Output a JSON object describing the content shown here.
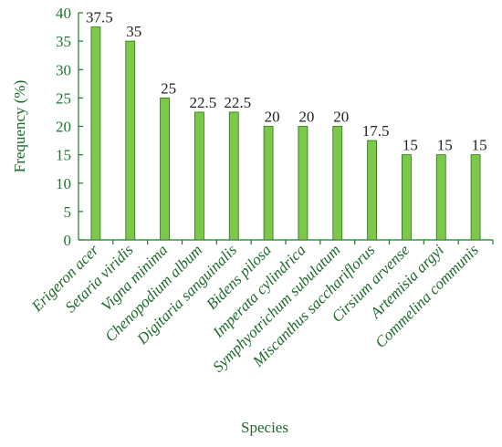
{
  "chart_data": {
    "type": "bar",
    "title": "",
    "xlabel": "Species",
    "ylabel": "Frequency (%)",
    "ylim": [
      0,
      40
    ],
    "yticks": [
      "0",
      "5",
      "10",
      "15",
      "20",
      "25",
      "30",
      "35",
      "40"
    ],
    "categories": [
      "Erigeron acer",
      "Setaria viridis",
      "Vigna minima",
      "Chenopodium album",
      "Digitaria sanguinalis",
      "Bidens pilosa",
      "Imperata cylindrica",
      "Symphyotrichum subulatum",
      "Miscanthus sacchariflorus",
      "Cirsium arvense",
      "Artemisia argyi",
      "Commelina communis"
    ],
    "values": [
      37.5,
      35,
      25,
      22.5,
      22.5,
      20,
      20,
      20,
      17.5,
      15,
      15,
      15
    ],
    "data_labels": [
      "37.5",
      "35",
      "25",
      "22.5",
      "22.5",
      "20",
      "20",
      "20",
      "17.5",
      "15",
      "15",
      "15"
    ],
    "grid": false,
    "legend": "none",
    "colors": {
      "bar_fill": "#7cc94a",
      "bar_stroke": "#2e6b1e",
      "axis": "#1a7a2a",
      "text": "#1a6a2a"
    }
  }
}
